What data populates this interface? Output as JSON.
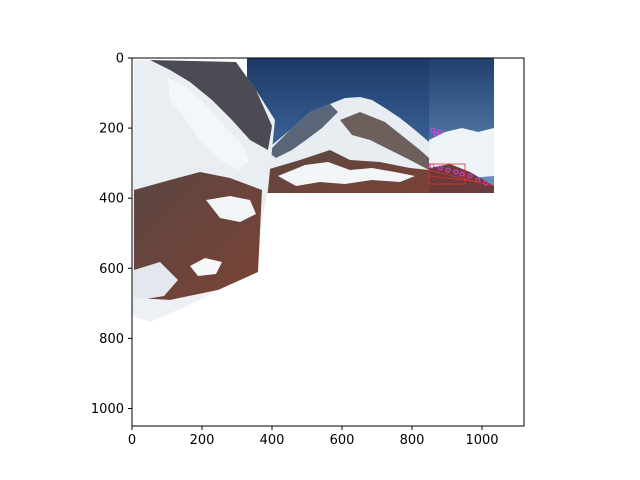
{
  "figure": {
    "x_axis": {
      "limits": [
        0,
        1120
      ],
      "ticks": [
        {
          "value": 0,
          "label": "0"
        },
        {
          "value": 200,
          "label": "200"
        },
        {
          "value": 400,
          "label": "400"
        },
        {
          "value": 600,
          "label": "600"
        },
        {
          "value": 800,
          "label": "800"
        },
        {
          "value": 1000,
          "label": "1000"
        }
      ]
    },
    "y_axis": {
      "limits": [
        0,
        1050
      ],
      "inverted": true,
      "ticks": [
        {
          "value": 0,
          "label": "0"
        },
        {
          "value": 200,
          "label": "200"
        },
        {
          "value": 400,
          "label": "400"
        },
        {
          "value": 600,
          "label": "600"
        },
        {
          "value": 800,
          "label": "800"
        },
        {
          "value": 1000,
          "label": "1000"
        }
      ]
    },
    "panorama": {
      "description_colors": {
        "sky_top": "#1e3d6b",
        "sky_bottom": "#3b6aa8",
        "snow": "#eef2f6",
        "shadow_snow": "#c9d3de",
        "rock_dark": "#4a3c3a",
        "rock_red": "#7a3f33",
        "keypoint_magenta": "#e040e0",
        "match_red": "#e03030"
      }
    }
  }
}
